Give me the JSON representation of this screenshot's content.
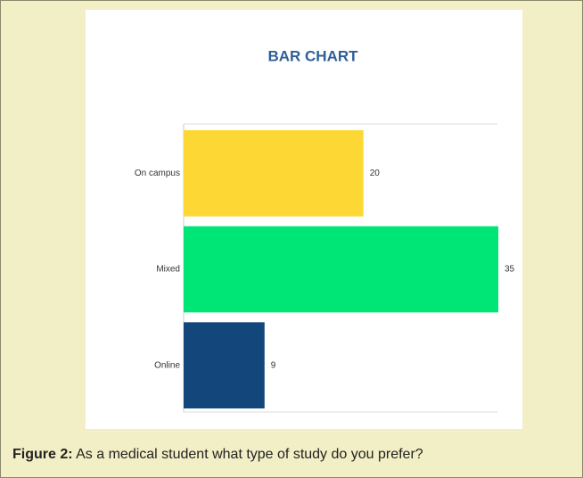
{
  "chart_data": {
    "type": "bar",
    "orientation": "horizontal",
    "title": "BAR CHART",
    "categories": [
      "On campus",
      "Mixed",
      "Online"
    ],
    "values": [
      20,
      35,
      9
    ],
    "colors": [
      "#fdd835",
      "#00e676",
      "#13467a"
    ],
    "xlim": [
      0,
      35
    ]
  },
  "caption": {
    "label": "Figure 2:",
    "text": "As a medical student what type of study do you prefer?"
  }
}
